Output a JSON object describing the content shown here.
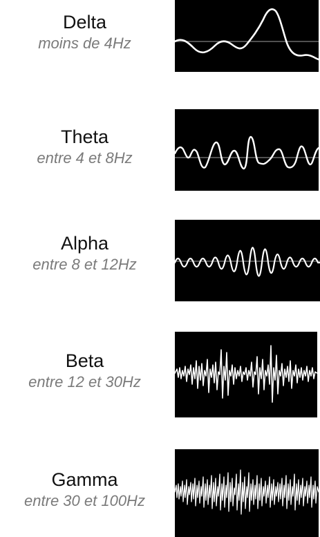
{
  "bands": [
    {
      "name": "Delta",
      "range": "moins de 4Hz"
    },
    {
      "name": "Theta",
      "range": "entre 4 et 8Hz"
    },
    {
      "name": "Alpha",
      "range": "entre 8 et 12Hz"
    },
    {
      "name": "Beta",
      "range": "entre 12 et 30Hz"
    },
    {
      "name": "Gamma",
      "range": "entre 30 et 100Hz"
    }
  ],
  "colors": {
    "panel_background": "#000000",
    "trace": "#ffffff",
    "name_text": "#111111",
    "range_text": "#7a7a7a"
  }
}
